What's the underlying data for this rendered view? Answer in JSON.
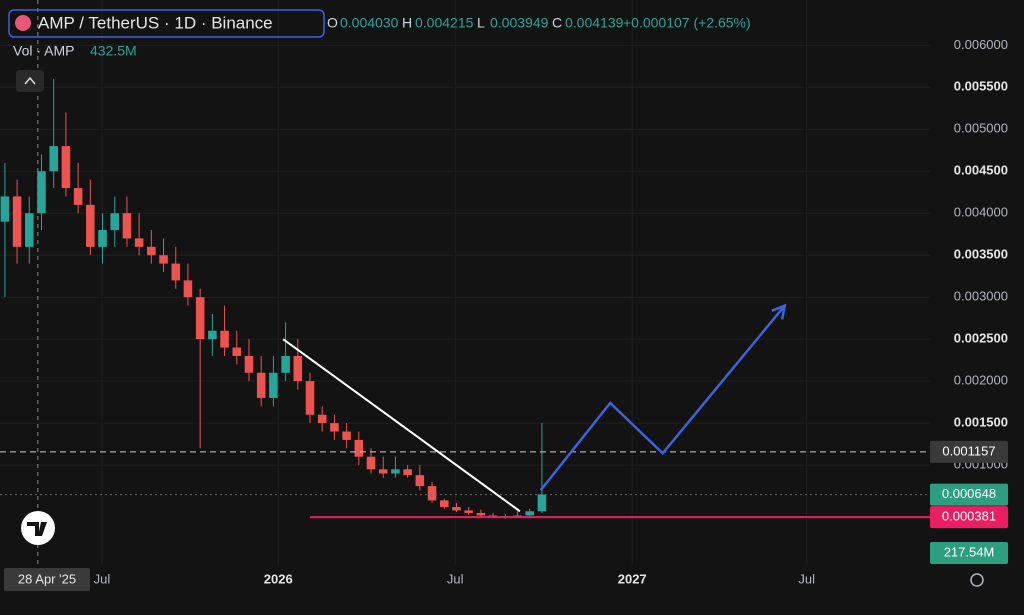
{
  "chart_data": {
    "type": "candlestick",
    "title": "AMP / TetherUS · 1D · Binance",
    "ohlc_legend": [
      {
        "key": "O",
        "value": "0.004030"
      },
      {
        "key": "H",
        "value": "0.004215"
      },
      {
        "key": "L",
        "value": "0.003949"
      },
      {
        "key": "C",
        "value": "0.004139"
      }
    ],
    "change": "+0.000107 (+2.65%)",
    "volume_label": "Vol · AMP",
    "volume_value": "432.5M",
    "categories": [
      null,
      null,
      null,
      null,
      null,
      null,
      null,
      null,
      null,
      null,
      null,
      null,
      null,
      null,
      null,
      null,
      null,
      null,
      null,
      null,
      null,
      null,
      null,
      null,
      null,
      null,
      null,
      null,
      null,
      null,
      null,
      null,
      null,
      null,
      null,
      null,
      null,
      null,
      null,
      null,
      null,
      null,
      null,
      null,
      null
    ],
    "open": [
      0.0039,
      0.0042,
      0.0036,
      0.004,
      0.0045,
      0.0048,
      0.0043,
      0.0041,
      0.0036,
      0.0038,
      0.004,
      0.0037,
      0.0036,
      0.0035,
      0.0034,
      0.0032,
      0.003,
      0.0025,
      0.0026,
      0.0024,
      0.0023,
      0.0021,
      0.0018,
      0.0021,
      0.0023,
      0.002,
      0.0016,
      0.0015,
      0.0014,
      0.0013,
      0.0011,
      0.00095,
      0.0009,
      0.00095,
      0.00088,
      0.00075,
      0.00058,
      0.0005,
      0.00046,
      0.00043,
      0.0004,
      0.00039,
      0.00039,
      0.0004,
      0.00045
    ],
    "high": [
      0.0046,
      0.0044,
      0.0042,
      0.0047,
      0.0056,
      0.0052,
      0.0046,
      0.0044,
      0.004,
      0.0042,
      0.0042,
      0.004,
      0.0038,
      0.0037,
      0.0036,
      0.0034,
      0.0031,
      0.0028,
      0.0029,
      0.0026,
      0.0025,
      0.0023,
      0.0023,
      0.0027,
      0.0025,
      0.0021,
      0.0017,
      0.0016,
      0.0015,
      0.0014,
      0.0012,
      0.0011,
      0.0011,
      0.001,
      0.001,
      0.0008,
      0.0006,
      0.00055,
      0.0005,
      0.00047,
      0.00043,
      0.00042,
      0.00045,
      0.00048,
      0.0015
    ],
    "low": [
      0.003,
      0.0034,
      0.0034,
      0.0038,
      0.0043,
      0.0042,
      0.004,
      0.0035,
      0.0034,
      0.0036,
      0.0036,
      0.0035,
      0.0034,
      0.0033,
      0.0031,
      0.0029,
      0.0012,
      0.0023,
      0.0023,
      0.0022,
      0.002,
      0.0017,
      0.0017,
      0.002,
      0.0019,
      0.0015,
      0.0014,
      0.0013,
      0.0012,
      0.001,
      0.0009,
      0.00085,
      0.00085,
      0.00085,
      0.0007,
      0.00055,
      0.00048,
      0.00044,
      0.00041,
      0.00038,
      0.00037,
      0.00036,
      0.00037,
      0.00038,
      0.00043
    ],
    "close": [
      0.0042,
      0.0036,
      0.004,
      0.0045,
      0.0048,
      0.0043,
      0.0041,
      0.0036,
      0.0038,
      0.004,
      0.0037,
      0.0036,
      0.0035,
      0.0034,
      0.0032,
      0.003,
      0.0025,
      0.0026,
      0.0024,
      0.0023,
      0.0021,
      0.0018,
      0.0021,
      0.0023,
      0.002,
      0.0016,
      0.0015,
      0.0014,
      0.0013,
      0.0011,
      0.00095,
      0.0009,
      0.00095,
      0.00088,
      0.00075,
      0.00058,
      0.0005,
      0.00046,
      0.00043,
      0.0004,
      0.00039,
      0.00039,
      0.0004,
      0.00045,
      0.00065
    ],
    "up_color": "#26a69a",
    "down_color": "#ef5350",
    "xlim": [
      -0.4,
      75.8
    ],
    "xticks": [
      {
        "value": 7.95,
        "label": "Jul"
      },
      {
        "value": 22.4,
        "label": "2026"
      },
      {
        "value": 36.9,
        "label": "Jul"
      },
      {
        "value": 51.4,
        "label": "2027"
      },
      {
        "value": 65.7,
        "label": "Jul"
      }
    ],
    "ylim": [
      -0.00019,
      0.00654
    ],
    "yticks": [
      {
        "value": 0.001,
        "label": "0.001000"
      },
      {
        "value": 0.0015,
        "label": "0.001500"
      },
      {
        "value": 0.002,
        "label": "0.002000"
      },
      {
        "value": 0.0025,
        "label": "0.002500"
      },
      {
        "value": 0.003,
        "label": "0.003000"
      },
      {
        "value": 0.0035,
        "label": "0.003500"
      },
      {
        "value": 0.004,
        "label": "0.004000"
      },
      {
        "value": 0.0045,
        "label": "0.004500"
      },
      {
        "value": 0.005,
        "label": "0.005000"
      },
      {
        "value": 0.0055,
        "label": "0.005500"
      },
      {
        "value": 0.006,
        "label": "0.006000"
      }
    ],
    "grid": true,
    "trendline": {
      "color": "#ffffff",
      "x": [
        22.8,
        42.2
      ],
      "y": [
        0.0025,
        0.00045
      ]
    },
    "projection": {
      "color": "#3d63dd",
      "x": [
        43.9,
        49.6,
        53.9,
        63.9
      ],
      "y": [
        0.0007,
        0.00174,
        0.00114,
        0.0029
      ]
    },
    "support": {
      "color": "#e91e63",
      "x_start": 25,
      "value": 0.000381,
      "label": "0.000381"
    },
    "price_tags": [
      {
        "value": 0.001157,
        "label": "0.001157",
        "color": "#3a3a3a"
      },
      {
        "value": 0.000648,
        "label": "0.000648",
        "color": "#2e9e80"
      }
    ],
    "volume_tag": {
      "label": "217.54M",
      "color": "#2e9e80"
    },
    "crosshair": {
      "x": 2.7,
      "label": "28 Apr '25"
    }
  }
}
